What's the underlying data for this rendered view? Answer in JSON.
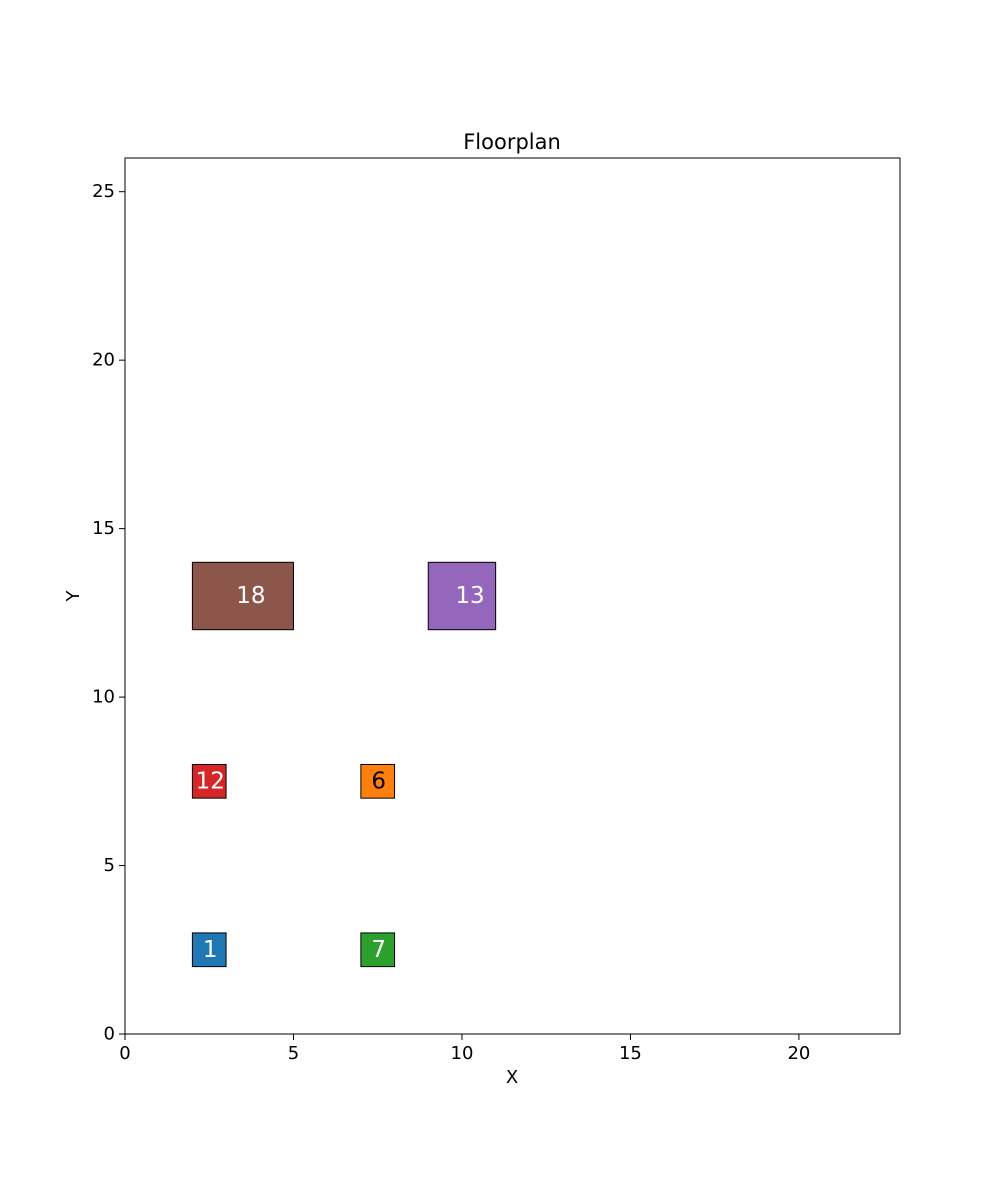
{
  "chart_data": {
    "type": "floorplan",
    "title": "Floorplan",
    "xlabel": "X",
    "ylabel": "Y",
    "xlim": [
      0,
      23
    ],
    "ylim": [
      0,
      26
    ],
    "xticks": [
      0,
      5,
      10,
      15,
      20
    ],
    "yticks": [
      0,
      5,
      10,
      15,
      20,
      25
    ],
    "grid": false,
    "rooms": [
      {
        "label": "1",
        "x0": 2,
        "y0": 2,
        "x1": 3,
        "y1": 3,
        "color": "#1f77b4",
        "text_color": "#ffffff"
      },
      {
        "label": "7",
        "x0": 7,
        "y0": 2,
        "x1": 8,
        "y1": 3,
        "color": "#2ca02c",
        "text_color": "#ffffff"
      },
      {
        "label": "12",
        "x0": 2,
        "y0": 7,
        "x1": 3,
        "y1": 8,
        "color": "#d62728",
        "text_color": "#ffffff"
      },
      {
        "label": "6",
        "x0": 7,
        "y0": 7,
        "x1": 8,
        "y1": 8,
        "color": "#ff7f0e",
        "text_color": "#000000"
      },
      {
        "label": "18",
        "x0": 2,
        "y0": 12,
        "x1": 5,
        "y1": 14,
        "color": "#8c564b",
        "text_color": "#ffffff"
      },
      {
        "label": "13",
        "x0": 9,
        "y0": 12,
        "x1": 11,
        "y1": 14,
        "color": "#9467bd",
        "text_color": "#ffffff"
      }
    ]
  }
}
